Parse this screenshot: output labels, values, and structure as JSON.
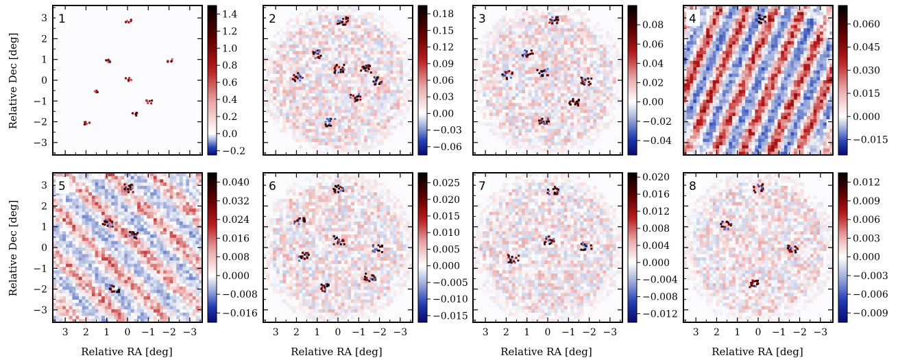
{
  "chart_data": {
    "type": "heatmap",
    "xlabel": "Relative RA [deg]",
    "ylabel": "Relative Dec [deg]",
    "x_ticks": [
      "3",
      "2",
      "1",
      "0",
      "−1",
      "−2",
      "−3"
    ],
    "x_tick_values": [
      3,
      2,
      1,
      0,
      -1,
      -2,
      -3
    ],
    "y_ticks": [
      "3",
      "2",
      "1",
      "0",
      "−1",
      "−2",
      "−3"
    ],
    "y_tick_values": [
      3,
      2,
      1,
      0,
      -1,
      -2,
      -3
    ],
    "xlim": [
      3.6,
      -3.6
    ],
    "ylim": [
      -3.6,
      3.6
    ],
    "colormap": [
      "#0a0a6e",
      "#1f3cb4",
      "#9aa9d8",
      "#ffffff",
      "#e8a7a7",
      "#b81b1b",
      "#5a0000",
      "#000000"
    ],
    "panels": [
      {
        "id": "1",
        "vmin": -0.25,
        "vmax": 1.5,
        "ticks": [
          "1.4",
          "1.2",
          "1.0",
          "0.8",
          "0.6",
          "0.4",
          "0.2",
          "0.0",
          "−0.2"
        ],
        "tick_values": [
          1.4,
          1.2,
          1.0,
          0.8,
          0.6,
          0.4,
          0.2,
          0.0,
          -0.2
        ],
        "pattern": "point_sources",
        "sources": [
          [
            0.0,
            0.1
          ],
          [
            2.0,
            -2.0
          ],
          [
            -1.0,
            -1.0
          ],
          [
            1.0,
            1.0
          ],
          [
            -2.0,
            1.0
          ],
          [
            0.0,
            2.9
          ],
          [
            1.5,
            -0.5
          ],
          [
            -0.3,
            -1.6
          ]
        ]
      },
      {
        "id": "2",
        "vmin": -0.075,
        "vmax": 0.195,
        "ticks": [
          "0.18",
          "0.15",
          "0.12",
          "0.09",
          "0.06",
          "0.03",
          "0.00",
          "−0.03",
          "−0.06"
        ],
        "tick_values": [
          0.18,
          0.15,
          0.12,
          0.09,
          0.06,
          0.03,
          0.0,
          -0.03,
          -0.06
        ],
        "pattern": "noise_sources",
        "sources": [
          [
            1.0,
            1.3
          ],
          [
            2.0,
            0.2
          ],
          [
            -1.8,
            0.0
          ],
          [
            -0.2,
            2.9
          ],
          [
            0.4,
            -2.0
          ],
          [
            -0.8,
            -0.8
          ],
          [
            0.0,
            0.6
          ],
          [
            -1.3,
            0.6
          ]
        ]
      },
      {
        "id": "3",
        "vmin": -0.055,
        "vmax": 0.1,
        "ticks": [
          "0.08",
          "0.06",
          "0.04",
          "0.02",
          "0.00",
          "−0.02",
          "−0.04"
        ],
        "tick_values": [
          0.08,
          0.06,
          0.04,
          0.02,
          0.0,
          -0.02,
          -0.04
        ],
        "pattern": "noise_sources",
        "sources": [
          [
            -0.2,
            2.9
          ],
          [
            0.3,
            0.4
          ],
          [
            2.0,
            0.3
          ],
          [
            -1.8,
            0.0
          ],
          [
            0.2,
            -1.9
          ],
          [
            -1.2,
            -1.0
          ],
          [
            1.0,
            1.3
          ]
        ]
      },
      {
        "id": "4",
        "vmin": -0.025,
        "vmax": 0.072,
        "ticks": [
          "0.060",
          "0.045",
          "0.030",
          "0.015",
          "0.000",
          "−0.015"
        ],
        "tick_values": [
          0.06,
          0.045,
          0.03,
          0.015,
          0.0,
          -0.015
        ],
        "pattern": "stripes",
        "sources": [
          [
            -0.1,
            3.0
          ]
        ]
      },
      {
        "id": "5",
        "vmin": -0.02,
        "vmax": 0.044,
        "ticks": [
          "0.040",
          "0.032",
          "0.024",
          "0.016",
          "0.008",
          "0.000",
          "−0.008",
          "−0.016"
        ],
        "tick_values": [
          0.04,
          0.032,
          0.024,
          0.016,
          0.008,
          0.0,
          -0.008,
          -0.016
        ],
        "pattern": "diag_stripes",
        "sources": [
          [
            0.0,
            2.9
          ],
          [
            0.7,
            -1.9
          ],
          [
            1.0,
            1.2
          ],
          [
            -0.3,
            0.6
          ]
        ]
      },
      {
        "id": "6",
        "vmin": -0.017,
        "vmax": 0.028,
        "ticks": [
          "0.025",
          "0.020",
          "0.015",
          "0.010",
          "0.005",
          "0.000",
          "−0.005",
          "−0.010",
          "−0.015"
        ],
        "tick_values": [
          0.025,
          0.02,
          0.015,
          0.01,
          0.005,
          0.0,
          -0.005,
          -0.01,
          -0.015
        ],
        "pattern": "noise_sources",
        "sources": [
          [
            0.0,
            2.9
          ],
          [
            -1.9,
            0.0
          ],
          [
            1.9,
            1.3
          ],
          [
            0.0,
            0.4
          ],
          [
            0.6,
            -1.9
          ],
          [
            -1.5,
            -1.4
          ],
          [
            1.7,
            -0.4
          ]
        ]
      },
      {
        "id": "7",
        "vmin": -0.014,
        "vmax": 0.021,
        "ticks": [
          "0.020",
          "0.016",
          "0.012",
          "0.008",
          "0.004",
          "0.000",
          "−0.004",
          "−0.008",
          "−0.012"
        ],
        "tick_values": [
          0.02,
          0.016,
          0.012,
          0.008,
          0.004,
          0.0,
          -0.004,
          -0.008,
          -0.012
        ],
        "pattern": "noise_sources",
        "sources": [
          [
            -0.2,
            2.8
          ],
          [
            0.0,
            0.4
          ],
          [
            1.7,
            -0.5
          ],
          [
            -1.8,
            0.1
          ]
        ]
      },
      {
        "id": "8",
        "vmin": -0.0105,
        "vmax": 0.0135,
        "ticks": [
          "0.012",
          "0.009",
          "0.006",
          "0.003",
          "0.000",
          "−0.003",
          "−0.006",
          "−0.009"
        ],
        "tick_values": [
          0.012,
          0.009,
          0.006,
          0.003,
          0.0,
          -0.003,
          -0.006,
          -0.009
        ],
        "pattern": "noise_sources",
        "sources": [
          [
            0.0,
            2.9
          ],
          [
            1.6,
            1.1
          ],
          [
            -1.6,
            0.0
          ],
          [
            0.3,
            -1.7
          ]
        ]
      }
    ]
  }
}
